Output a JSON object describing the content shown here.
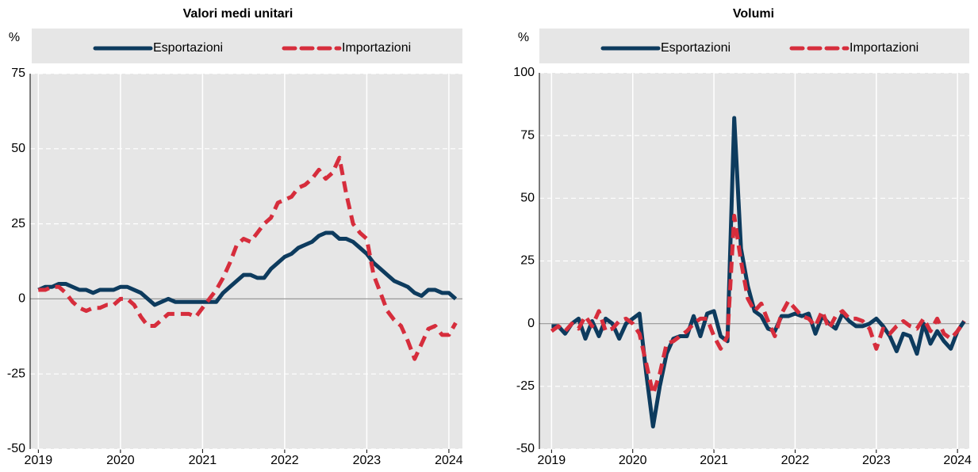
{
  "chart_data": [
    {
      "type": "line",
      "title": "Valori medi unitari",
      "y_label": "%",
      "grid": true,
      "legend": "top",
      "x": [
        2019,
        2019.083,
        2019.167,
        2019.25,
        2019.333,
        2019.417,
        2019.5,
        2019.583,
        2019.667,
        2019.75,
        2019.833,
        2019.917,
        2020,
        2020.083,
        2020.167,
        2020.25,
        2020.333,
        2020.417,
        2020.5,
        2020.583,
        2020.667,
        2020.75,
        2020.833,
        2020.917,
        2021,
        2021.083,
        2021.167,
        2021.25,
        2021.333,
        2021.417,
        2021.5,
        2021.583,
        2021.667,
        2021.75,
        2021.833,
        2021.917,
        2022,
        2022.083,
        2022.167,
        2022.25,
        2022.333,
        2022.417,
        2022.5,
        2022.583,
        2022.667,
        2022.75,
        2022.833,
        2022.917,
        2023,
        2023.083,
        2023.167,
        2023.25,
        2023.333,
        2023.417,
        2023.5,
        2023.583,
        2023.667,
        2023.75,
        2023.833,
        2023.917,
        2024,
        2024.083
      ],
      "xlim": [
        2018.9,
        2024.165
      ],
      "xticks": [
        2019,
        2020,
        2021,
        2022,
        2023,
        2024
      ],
      "ylim": [
        -50,
        75
      ],
      "yticks": [
        -50,
        -25,
        0,
        25,
        50,
        75
      ],
      "series": [
        {
          "name": "Esportazioni",
          "color": "#0d3b5e",
          "dash": false,
          "values": [
            3,
            4,
            4,
            5,
            5,
            4,
            3,
            3,
            2,
            3,
            3,
            3,
            4,
            4,
            3,
            2,
            0,
            -2,
            -1,
            0,
            -1,
            -1,
            -1,
            -1,
            -1,
            -1,
            -1,
            2,
            4,
            6,
            8,
            8,
            7,
            7,
            10,
            12,
            14,
            15,
            17,
            18,
            19,
            21,
            22,
            22,
            20,
            20,
            19,
            17,
            15,
            12,
            10,
            8,
            6,
            5,
            4,
            2,
            1,
            3,
            3,
            2,
            2,
            0
          ]
        },
        {
          "name": "Importazioni",
          "color": "#d62d3c",
          "dash": true,
          "values": [
            3,
            3,
            4,
            4,
            2,
            -1,
            -3,
            -4,
            -3,
            -3,
            -2,
            -2,
            0,
            0,
            -2,
            -6,
            -9,
            -9,
            -7,
            -5,
            -5,
            -5,
            -5,
            -6,
            -3,
            0,
            3,
            7,
            12,
            18,
            20,
            19,
            22,
            25,
            27,
            32,
            33,
            34,
            37,
            38,
            40,
            43,
            40,
            42,
            47,
            35,
            25,
            22,
            20,
            8,
            2,
            -4,
            -7,
            -9,
            -14,
            -20,
            -15,
            -10,
            -9,
            -12,
            -12,
            -8
          ]
        }
      ]
    },
    {
      "type": "line",
      "title": "Volumi",
      "y_label": "%",
      "grid": true,
      "legend": "top",
      "x": [
        2019,
        2019.083,
        2019.167,
        2019.25,
        2019.333,
        2019.417,
        2019.5,
        2019.583,
        2019.667,
        2019.75,
        2019.833,
        2019.917,
        2020,
        2020.083,
        2020.167,
        2020.25,
        2020.333,
        2020.417,
        2020.5,
        2020.583,
        2020.667,
        2020.75,
        2020.833,
        2020.917,
        2021,
        2021.083,
        2021.167,
        2021.25,
        2021.333,
        2021.417,
        2021.5,
        2021.583,
        2021.667,
        2021.75,
        2021.833,
        2021.917,
        2022,
        2022.083,
        2022.167,
        2022.25,
        2022.333,
        2022.417,
        2022.5,
        2022.583,
        2022.667,
        2022.75,
        2022.833,
        2022.917,
        2023,
        2023.083,
        2023.167,
        2023.25,
        2023.333,
        2023.417,
        2023.5,
        2023.583,
        2023.667,
        2023.75,
        2023.833,
        2023.917,
        2024,
        2024.083
      ],
      "xlim": [
        2018.85,
        2024.145
      ],
      "xticks": [
        2019,
        2020,
        2021,
        2022,
        2023,
        2024
      ],
      "ylim": [
        -50,
        100
      ],
      "yticks": [
        -50,
        -25,
        0,
        25,
        50,
        75,
        100
      ],
      "series": [
        {
          "name": "Esportazioni",
          "color": "#0d3b5e",
          "dash": false,
          "values": [
            -1,
            -1,
            -4,
            0,
            2,
            -6,
            1,
            -5,
            2,
            0,
            -6,
            0,
            2,
            4,
            -20,
            -41,
            -25,
            -12,
            -6,
            -5,
            -5,
            3,
            -5,
            4,
            5,
            -5,
            -7,
            82,
            30,
            15,
            5,
            3,
            -2,
            -3,
            3,
            3,
            4,
            3,
            4,
            -4,
            3,
            0,
            -2,
            4,
            1,
            -1,
            -1,
            0,
            2,
            -1,
            -5,
            -11,
            -4,
            -5,
            -12,
            0,
            -8,
            -3,
            -7,
            -10,
            -3,
            1
          ]
        },
        {
          "name": "Importazioni",
          "color": "#d62d3c",
          "dash": true,
          "values": [
            -3,
            -1,
            -3,
            0,
            -2,
            3,
            -1,
            5,
            -3,
            -2,
            1,
            2,
            0,
            -4,
            -16,
            -28,
            -20,
            -8,
            -7,
            -5,
            -3,
            0,
            2,
            2,
            -5,
            -10,
            -5,
            43,
            25,
            10,
            5,
            8,
            1,
            -5,
            4,
            9,
            6,
            3,
            2,
            -1,
            5,
            -2,
            3,
            5,
            2,
            2,
            1,
            -2,
            -10,
            -2,
            -4,
            -1,
            1,
            -1,
            -2,
            2,
            -3,
            2,
            -4,
            -6,
            -3,
            1
          ]
        }
      ]
    }
  ]
}
